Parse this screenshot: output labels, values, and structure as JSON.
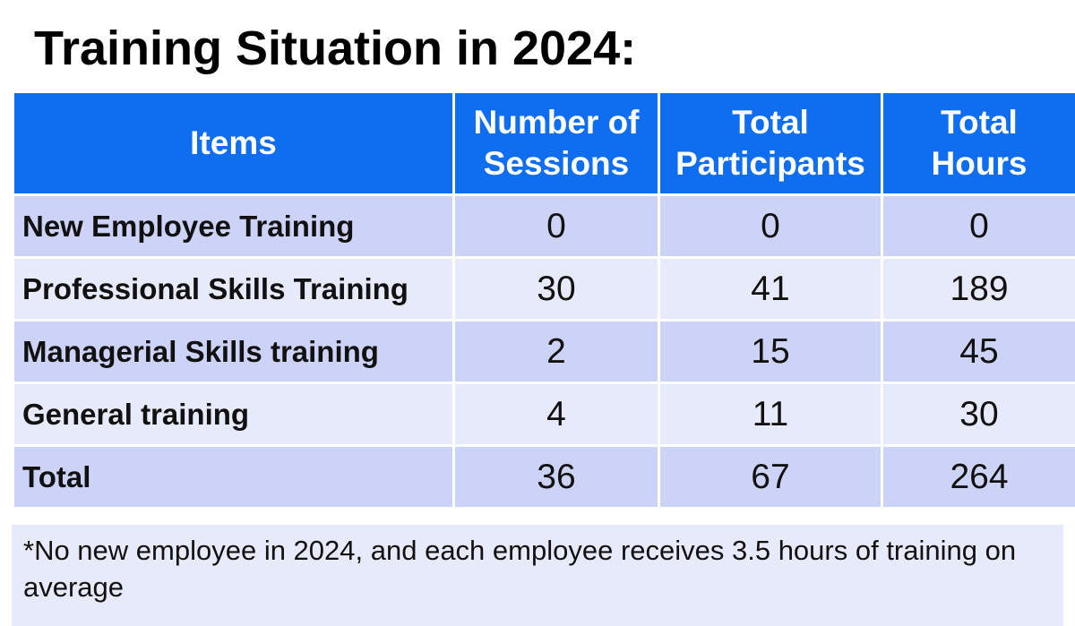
{
  "title": "Training Situation in 2024:",
  "table": {
    "headers": {
      "items": "Items",
      "sessions_line1": "Number of",
      "sessions_line2": "Sessions",
      "participants_line1": "Total",
      "participants_line2": "Participants",
      "hours_line1": "Total",
      "hours_line2": "Hours"
    },
    "rows": [
      {
        "item": "New Employee Training",
        "sessions": "0",
        "participants": "0",
        "hours": "0"
      },
      {
        "item": "Professional Skills Training",
        "sessions": "30",
        "participants": "41",
        "hours": "189"
      },
      {
        "item": "Managerial Skills training",
        "sessions": "2",
        "participants": "15",
        "hours": "45"
      },
      {
        "item": "General training",
        "sessions": "4",
        "participants": "11",
        "hours": "30"
      },
      {
        "item": "Total",
        "sessions": "36",
        "participants": "67",
        "hours": "264"
      }
    ]
  },
  "footnote": "*No new employee in 2024, and each employee receives 3.5 hours of training on average",
  "colors": {
    "header_bg": "#0f6ef0",
    "row_dark": "#cdd3f6",
    "row_light": "#e7eafb"
  }
}
